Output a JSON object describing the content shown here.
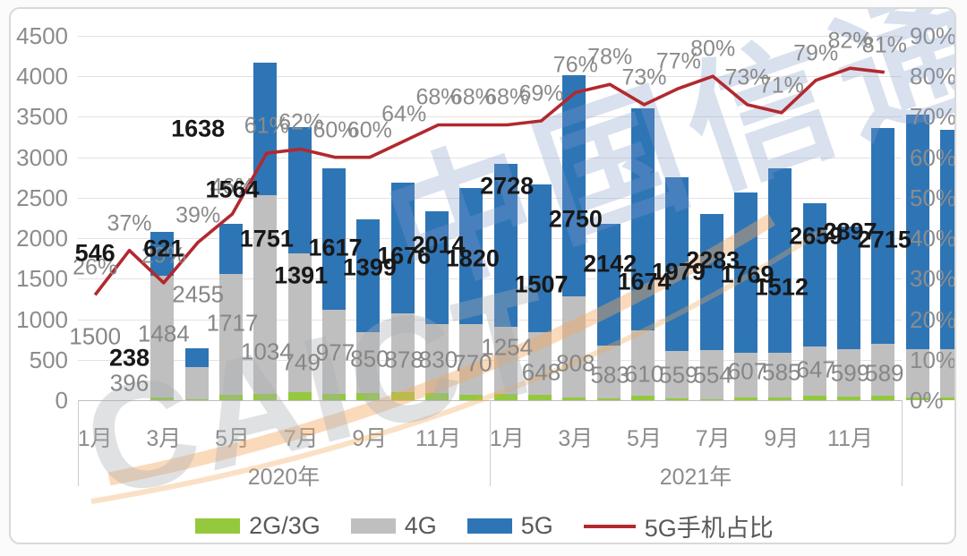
{
  "watermark": {
    "latin": "CAICT",
    "cjk": "中国信通院"
  },
  "colors": {
    "g23": "#94c83d",
    "g4": "#bfbfbf",
    "g5": "#2e75b6",
    "line": "#b2292e",
    "grid": "#e2e2e2",
    "swoosh": "#f2a85c"
  },
  "legend": [
    {
      "label": "2G/3G",
      "color": "#94c83d",
      "type": "box"
    },
    {
      "label": "4G",
      "color": "#bfbfbf",
      "type": "box"
    },
    {
      "label": "5G",
      "color": "#2e75b6",
      "type": "box"
    },
    {
      "label": "5G手机占比",
      "color": "#b2292e",
      "type": "line"
    }
  ],
  "chart_data": {
    "type": "bar",
    "stacked": true,
    "legend_position": "bottom",
    "grid": true,
    "ylim_left": [
      0,
      4500
    ],
    "ylim_right_pct": [
      0,
      90
    ],
    "y_axis_left_ticks": [
      "0",
      "500",
      "1000",
      "1500",
      "2000",
      "2500",
      "3000",
      "3500",
      "4000",
      "4500"
    ],
    "y_axis_right_ticks": [
      "0%",
      "10%",
      "20%",
      "30%",
      "40%",
      "50%",
      "60%",
      "70%",
      "80%",
      "90%"
    ],
    "years": [
      {
        "label": "2020年"
      },
      {
        "label": "2021年"
      }
    ],
    "month_ticks_shown": [
      "1月",
      "3月",
      "5月",
      "7月",
      "9月",
      "11月"
    ],
    "month_tick_slots": [
      0,
      2,
      4,
      6,
      8,
      10
    ],
    "categories": [
      "2020-1月",
      "2020-2月",
      "2020-3月",
      "2020-4月",
      "2020-5月",
      "2020-6月",
      "2020-7月",
      "2020-8月",
      "2020-9月",
      "2020-10月",
      "2020-11月",
      "2020-12月",
      "2021-1月",
      "2021-2月",
      "2021-3月",
      "2021-4月",
      "2021-5月",
      "2021-6月",
      "2021-7月",
      "2021-8月",
      "2021-9月",
      "2021-10月",
      "2021-11月",
      "2021-12月"
    ],
    "series": [
      {
        "name": "2G/3G",
        "color": "#94c83d",
        "labeled": false,
        "values_estimated": [
          35,
          8,
          71,
          80,
          95,
          78,
          90,
          97,
          85,
          61,
          80,
          70,
          30,
          21,
          51,
          23,
          13,
          28,
          30,
          54,
          47,
          51,
          29,
          36
        ]
      },
      {
        "name": "4G",
        "color": "#bfbfbf",
        "labeled": true,
        "values": [
          1500,
          396,
          1484,
          2455,
          1717,
          1034,
          749,
          977,
          850,
          878,
          830,
          770,
          1254,
          648,
          808,
          583,
          610,
          559,
          554,
          607,
          585,
          647,
          599,
          589
        ]
      },
      {
        "name": "5G",
        "color": "#2e75b6",
        "labeled": true,
        "values": [
          546,
          238,
          621,
          1638,
          1564,
          1751,
          1391,
          1617,
          1399,
          1676,
          2014,
          1820,
          2728,
          1507,
          2750,
          2142,
          1674,
          1979,
          2283,
          1769,
          1512,
          2659,
          2897,
          2715
        ]
      }
    ],
    "line": {
      "name": "5G手机占比",
      "color": "#b2292e",
      "values_pct": [
        26,
        37,
        29,
        39,
        46,
        61,
        62,
        60,
        60,
        64,
        68,
        68,
        68,
        69,
        76,
        78,
        73,
        77,
        80,
        73,
        71,
        79,
        82,
        81
      ],
      "labels": [
        "26%",
        "37%",
        "29%",
        "39%",
        "46%",
        "61%",
        "62%",
        "60%",
        "60%",
        "64%",
        "68%",
        "68%",
        "68%",
        "69%",
        "76%",
        "78%",
        "73%",
        "77%",
        "80%",
        "73%",
        "71%",
        "79%",
        "82%",
        "81%"
      ]
    }
  }
}
